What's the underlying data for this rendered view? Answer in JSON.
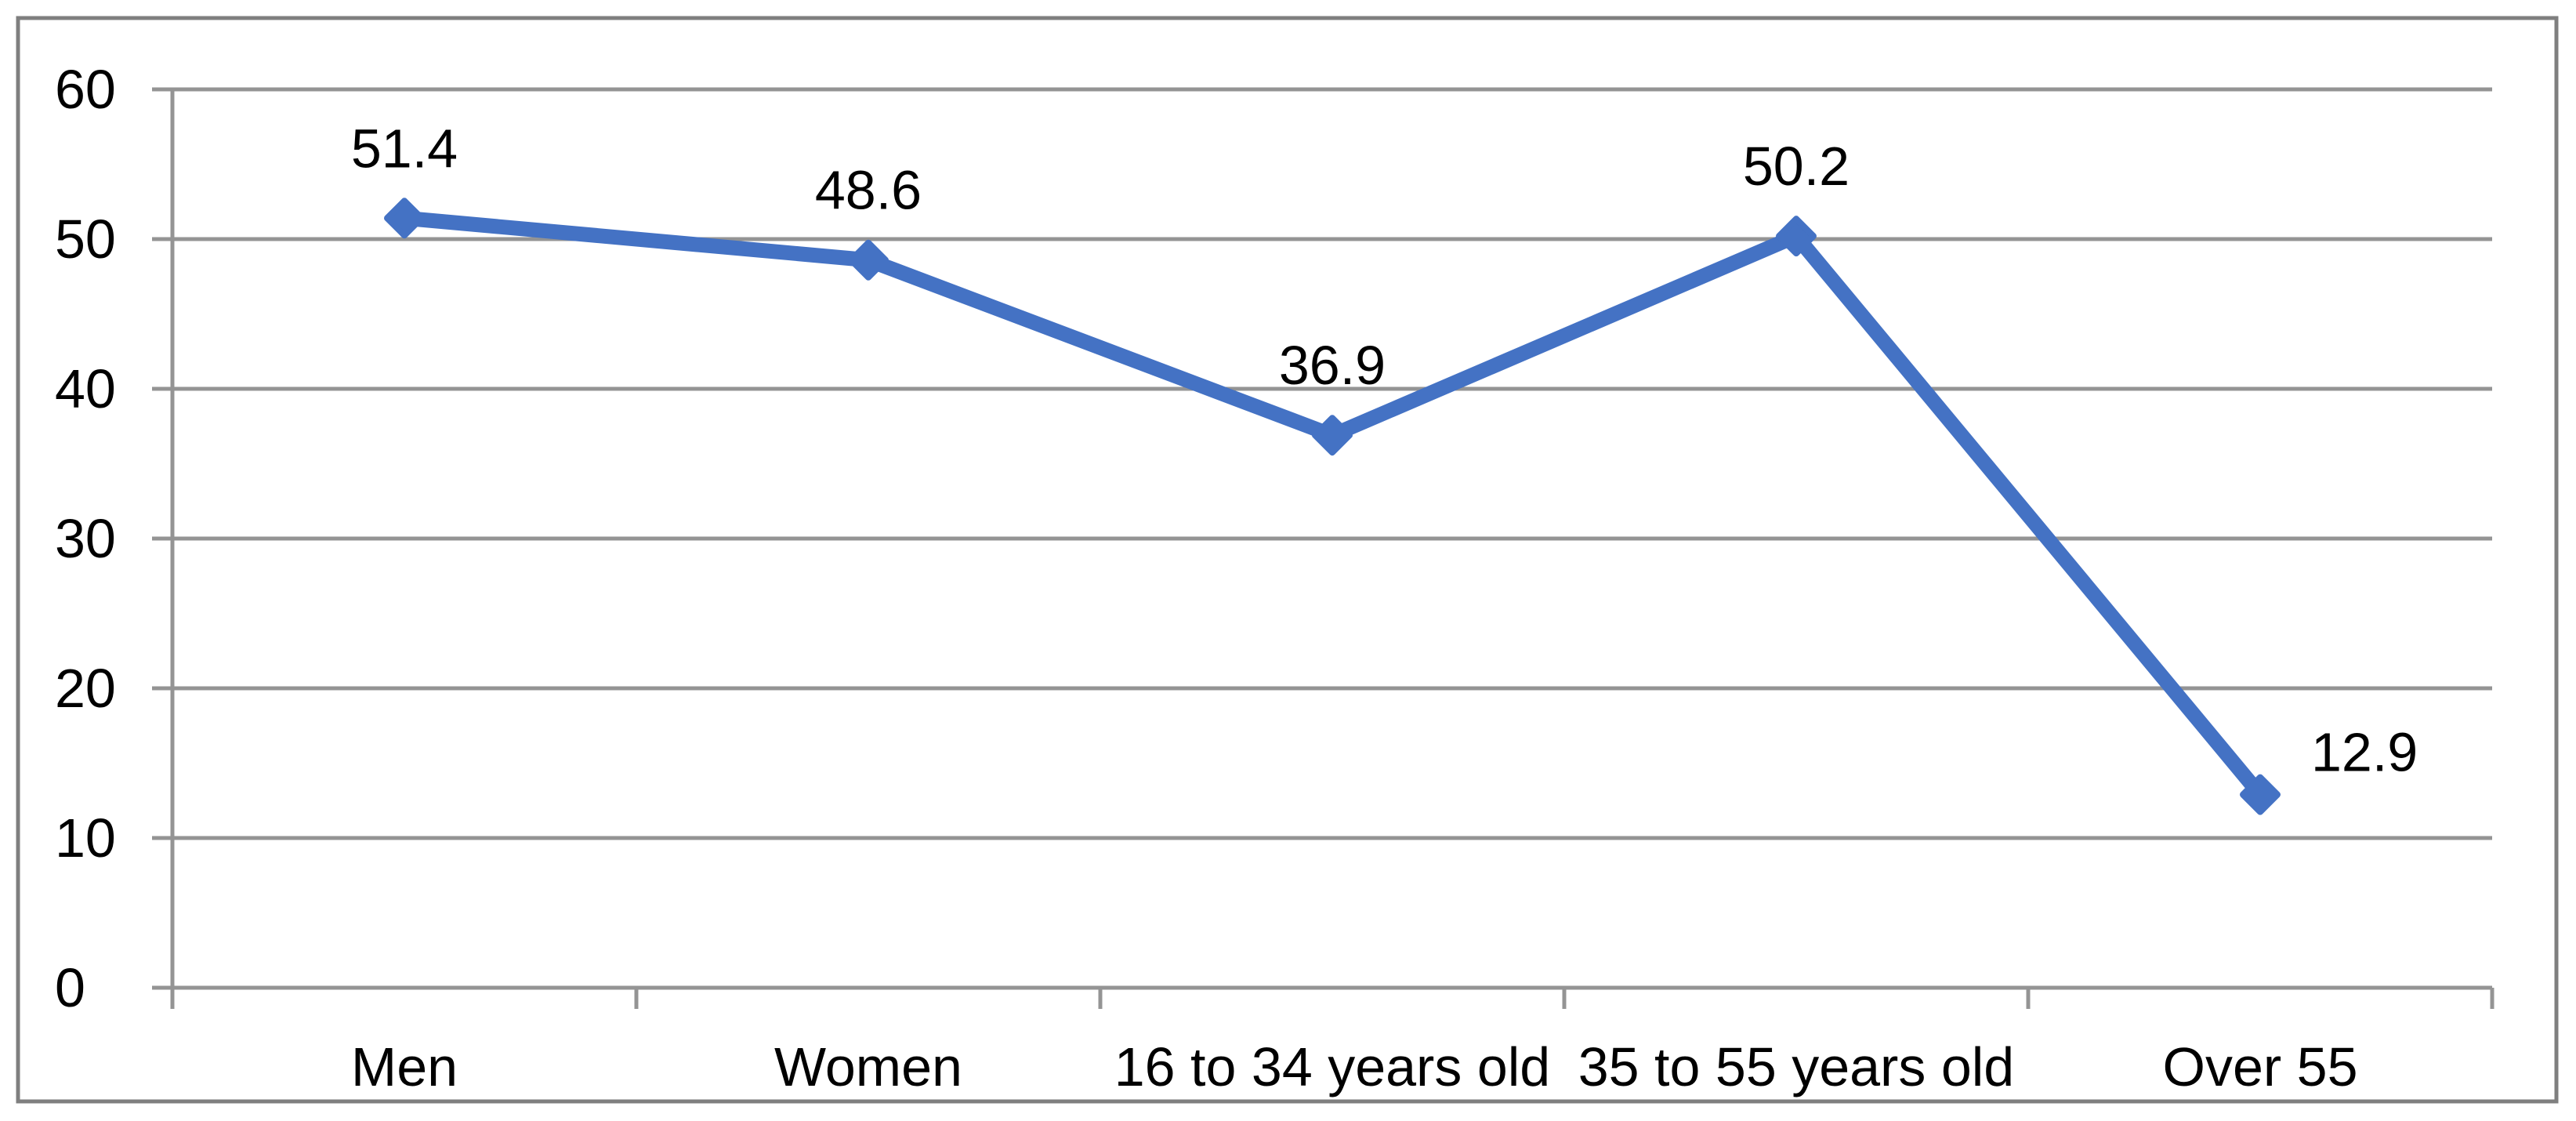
{
  "figure": {
    "background": "#FFFFFF",
    "border_color": "#7F7F7F"
  },
  "chart_data": {
    "type": "line",
    "categories": [
      "Men",
      "Women",
      "16 to 34 years old",
      "35 to 55 years old",
      "Over 55"
    ],
    "series": [
      {
        "name": "",
        "values": [
          51.4,
          48.6,
          36.9,
          50.2,
          12.9
        ],
        "data_labels": [
          "51.4",
          "48.6",
          "36.9",
          "50.2",
          "12.9"
        ],
        "label_positions": [
          "above",
          "above",
          "above",
          "above",
          "right"
        ],
        "color": "#4472C4",
        "marker": "diamond"
      }
    ],
    "title": "",
    "xlabel": "",
    "ylabel": "",
    "ylim": [
      0,
      60
    ],
    "yticks": [
      0,
      10,
      20,
      30,
      40,
      50,
      60
    ],
    "ytick_labels": [
      "0",
      "10",
      "20",
      "30",
      "40",
      "50",
      "60"
    ],
    "grid": "horizontal",
    "gridline_color": "#949494",
    "axis_color": "#949494",
    "text_color": "#000000",
    "legend": "none"
  }
}
